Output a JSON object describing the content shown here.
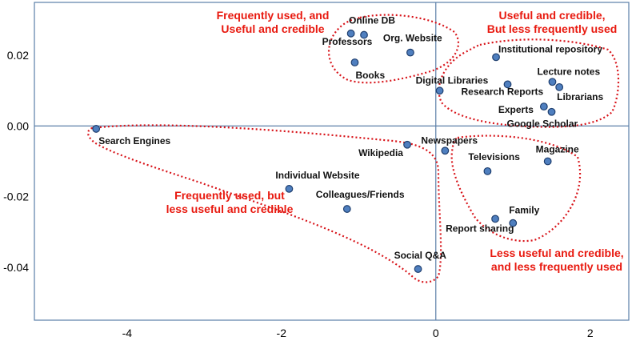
{
  "chart_data": {
    "type": "scatter",
    "xlim": [
      -5.2,
      2.5
    ],
    "ylim": [
      -0.055,
      0.035
    ],
    "xticks": [
      -4,
      -2,
      0,
      2
    ],
    "yticks": [
      0.02,
      0.0,
      -0.02,
      -0.04
    ],
    "xtick_labels": [
      "-4",
      "-2",
      "0",
      "2"
    ],
    "ytick_labels": [
      "0.02",
      "0.00",
      "-0.02",
      "-0.04"
    ],
    "grid": false,
    "legend": "none",
    "points": [
      {
        "label": "Online DB",
        "x": -0.93,
        "y": 0.0258
      },
      {
        "label": "Org. Website",
        "x": -0.33,
        "y": 0.0208
      },
      {
        "label": "Professors",
        "x": -1.1,
        "y": 0.0262
      },
      {
        "label": "Books",
        "x": -1.05,
        "y": 0.018
      },
      {
        "label": "Institutional repository",
        "x": 0.78,
        "y": 0.0195
      },
      {
        "label": "Digital Libraries",
        "x": 0.05,
        "y": 0.01
      },
      {
        "label": "Lecture notes",
        "x": 1.51,
        "y": 0.0125
      },
      {
        "label": "Research Reports",
        "x": 0.93,
        "y": 0.0118
      },
      {
        "label": "Librarians",
        "x": 1.6,
        "y": 0.011
      },
      {
        "label": "Experts",
        "x": 1.4,
        "y": 0.0055
      },
      {
        "label": "Google Scholar",
        "x": 1.5,
        "y": 0.004
      },
      {
        "label": "Search Engines",
        "x": -4.4,
        "y": -0.0008
      },
      {
        "label": "Wikipedia",
        "x": -0.37,
        "y": -0.0053
      },
      {
        "label": "Newspapers",
        "x": 0.12,
        "y": -0.007
      },
      {
        "label": "Televisions",
        "x": 0.67,
        "y": -0.0128
      },
      {
        "label": "Magazine",
        "x": 1.45,
        "y": -0.01
      },
      {
        "label": "Individual Website",
        "x": -1.9,
        "y": -0.0178
      },
      {
        "label": "Colleagues/Friends",
        "x": -1.15,
        "y": -0.0235
      },
      {
        "label": "Family",
        "x": 1.0,
        "y": -0.0275
      },
      {
        "label": "Report sharing",
        "x": 0.77,
        "y": -0.0263
      },
      {
        "label": "Social Q&A",
        "x": -0.23,
        "y": -0.0405
      }
    ],
    "annotations": [
      {
        "lines": [
          "Frequently used, and",
          "Useful and credible"
        ]
      },
      {
        "lines": [
          "Useful and credible,",
          "But less frequently used"
        ]
      },
      {
        "lines": [
          "Frequently used, but",
          "less useful and credible"
        ]
      },
      {
        "lines": [
          "Less useful and credible,",
          "and less frequently used"
        ]
      }
    ],
    "colors": {
      "point": "#4f7fbf",
      "annotation": "#e8190f",
      "cluster": "#d8141a",
      "axis": "#5b7fa8"
    }
  }
}
